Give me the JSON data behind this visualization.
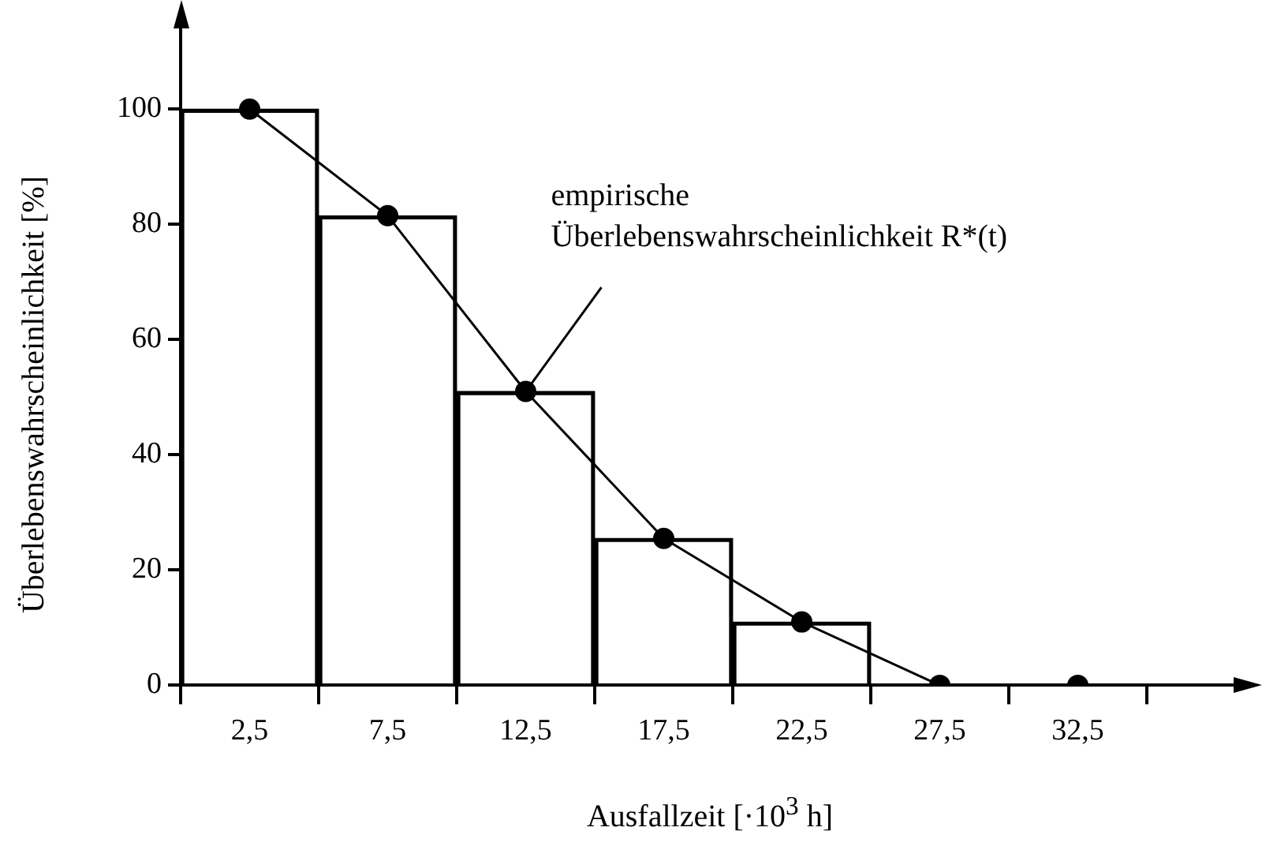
{
  "chart_data": {
    "type": "bar",
    "xlabel": "Ausfallzeit [·10$^{3}$ h]",
    "ylabel": "Überlebenswahrscheinlichkeit [%]",
    "categories": [
      "2,5",
      "7,5",
      "12,5",
      "17,5",
      "22,5",
      "27,5",
      "32,5"
    ],
    "values": [
      100,
      81.5,
      51,
      25.5,
      11,
      null,
      null
    ],
    "color": "#000000",
    "series": [
      {
        "type": "line",
        "values": [
          100,
          81.5,
          51,
          25.5,
          11,
          0,
          0
        ],
        "color": "#000000"
      }
    ],
    "marker": "circle",
    "line_style": "solid",
    "grid": false,
    "legend": false,
    "ylim": [
      0,
      114
    ],
    "yticks": [
      0,
      20,
      40,
      60,
      80,
      100
    ],
    "annotations": [
      {
        "text": "empirische Überlebenswahrscheinlichkeit R*(t)",
        "x": "12,5",
        "y": 51
      }
    ]
  }
}
